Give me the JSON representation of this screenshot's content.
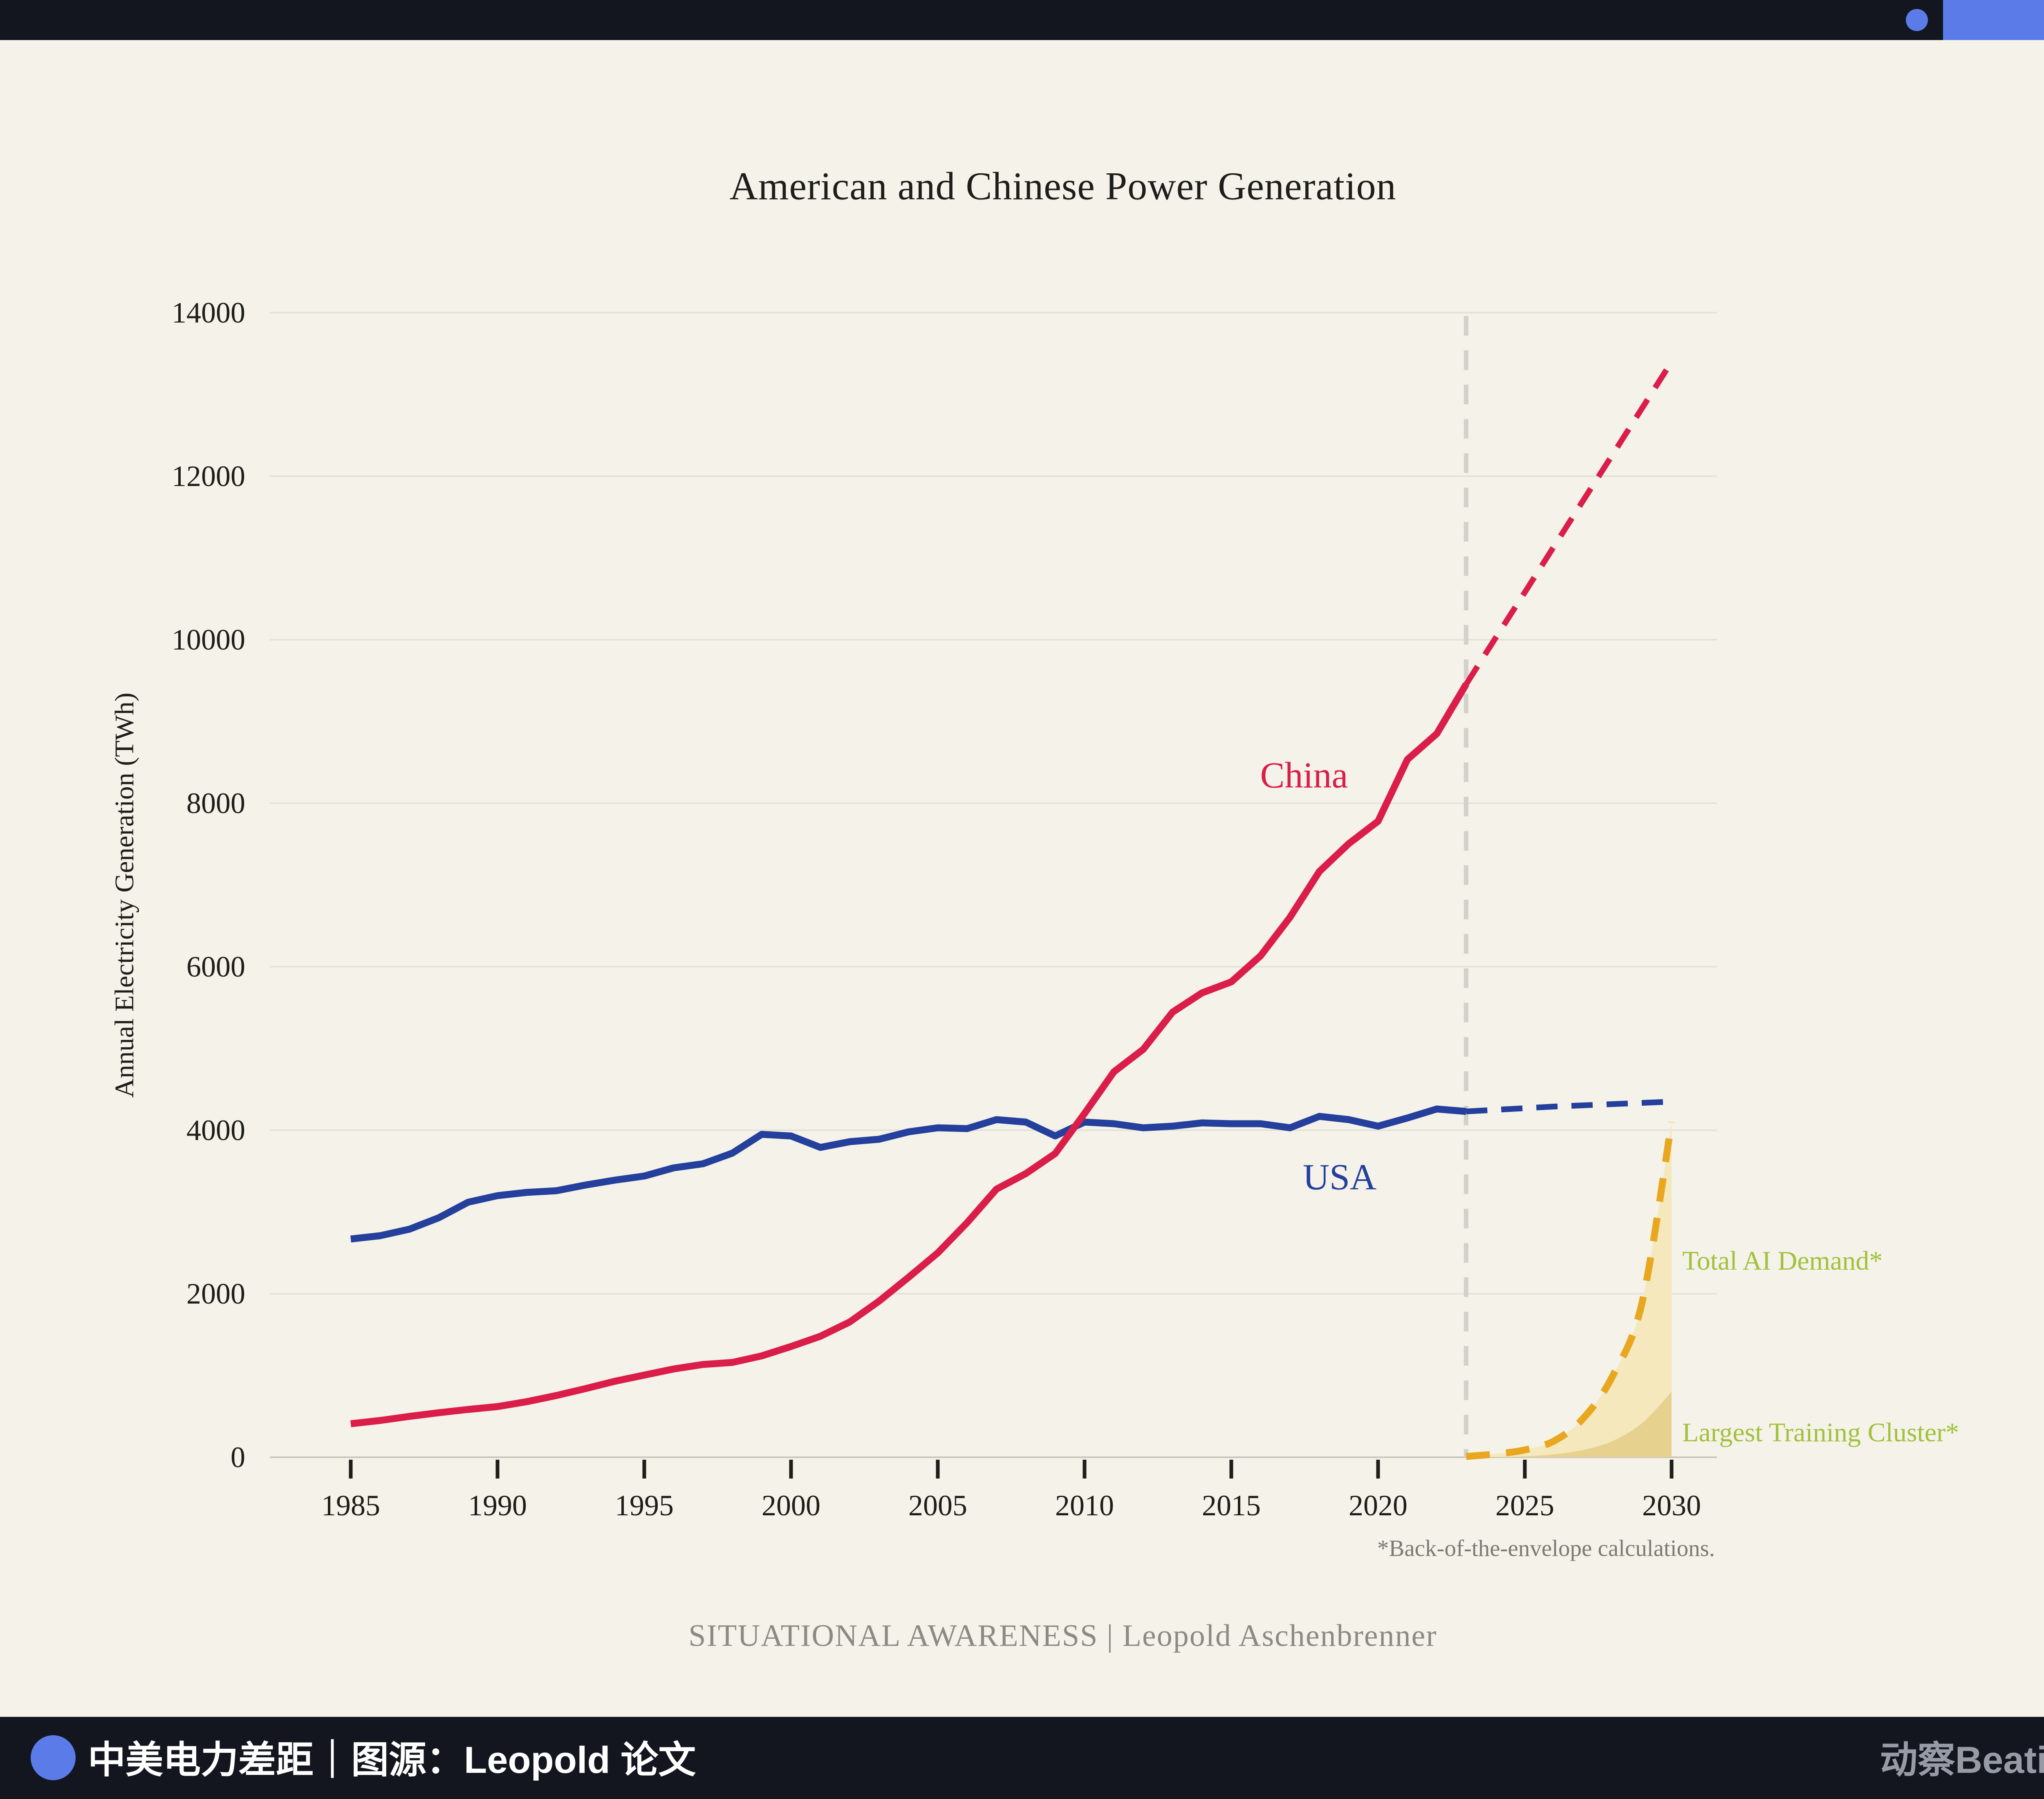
{
  "theme": {
    "background": "#f4f2e9",
    "bar": "#13161f",
    "accent_blue": "#5b7ce8",
    "usa_blue": "#24409c",
    "china_red": "#da1e49",
    "ai_gold": "#e9a71f",
    "ai_fill": "#f4e8bc",
    "cluster_fill": "#e6d18f",
    "annotation_green": "#a2c13c",
    "grid": "#e4e3da",
    "axis": "#c9c7bd",
    "divider": "#d3d2ca",
    "tick": "#1d1d1b",
    "caption_gray": "#8b8b85",
    "footnote_gray": "#7b7b76",
    "logo_gray": "#979ba6"
  },
  "chart_data": {
    "type": "line",
    "title": "American and Chinese Power Generation",
    "ylabel": "Annual Electricity Generation (TWh)",
    "ylim": [
      0,
      14000
    ],
    "yticks": [
      0,
      2000,
      4000,
      6000,
      8000,
      10000,
      12000,
      14000
    ],
    "xticks": [
      1985,
      1990,
      1995,
      2000,
      2005,
      2010,
      2015,
      2020,
      2025,
      2030
    ],
    "grid": true,
    "legend_position": "inline-labels",
    "projection_divider_year": 2023,
    "series": [
      {
        "name": "USA",
        "style": "solid",
        "color_key": "usa_blue",
        "x": [
          1985,
          1986,
          1987,
          1988,
          1989,
          1990,
          1991,
          1992,
          1993,
          1994,
          1995,
          1996,
          1997,
          1998,
          1999,
          2000,
          2001,
          2002,
          2003,
          2004,
          2005,
          2006,
          2007,
          2008,
          2009,
          2010,
          2011,
          2012,
          2013,
          2014,
          2015,
          2016,
          2017,
          2018,
          2019,
          2020,
          2021,
          2022,
          2023
        ],
        "values": [
          2670,
          2710,
          2790,
          2930,
          3120,
          3200,
          3240,
          3260,
          3330,
          3390,
          3440,
          3540,
          3590,
          3720,
          3950,
          3930,
          3790,
          3860,
          3890,
          3980,
          4030,
          4020,
          4130,
          4100,
          3930,
          4100,
          4080,
          4030,
          4050,
          4090,
          4080,
          4080,
          4030,
          4170,
          4130,
          4050,
          4150,
          4260,
          4230
        ]
      },
      {
        "name": "USA projection",
        "style": "dashed",
        "color_key": "usa_blue",
        "x": [
          2023,
          2024,
          2025,
          2026,
          2027,
          2028,
          2029,
          2030
        ],
        "values": [
          4230,
          4250,
          4270,
          4290,
          4305,
          4320,
          4335,
          4350
        ]
      },
      {
        "name": "China",
        "style": "solid",
        "color_key": "china_red",
        "x": [
          1985,
          1986,
          1987,
          1988,
          1989,
          1990,
          1991,
          1992,
          1993,
          1994,
          1995,
          1996,
          1997,
          1998,
          1999,
          2000,
          2001,
          2002,
          2003,
          2004,
          2005,
          2006,
          2007,
          2008,
          2009,
          2010,
          2011,
          2012,
          2013,
          2014,
          2015,
          2016,
          2017,
          2018,
          2019,
          2020,
          2021,
          2022,
          2023
        ],
        "values": [
          410,
          450,
          500,
          545,
          585,
          620,
          680,
          755,
          840,
          930,
          1005,
          1080,
          1135,
          1160,
          1240,
          1355,
          1480,
          1655,
          1910,
          2200,
          2500,
          2870,
          3280,
          3470,
          3715,
          4205,
          4715,
          4990,
          5445,
          5680,
          5815,
          6135,
          6605,
          7165,
          7505,
          7780,
          8535,
          8850,
          9455
        ]
      },
      {
        "name": "China projection",
        "style": "dashed",
        "color_key": "china_red",
        "x": [
          2023,
          2024,
          2025,
          2026,
          2027,
          2028,
          2029,
          2030
        ],
        "values": [
          9455,
          10020,
          10580,
          11145,
          11710,
          12270,
          12835,
          13400
        ]
      },
      {
        "name": "Total AI Demand*",
        "style": "dashed",
        "smooth": true,
        "color_key": "ai_gold",
        "fill_key": "ai_fill",
        "x": [
          2023,
          2024,
          2025,
          2026,
          2027,
          2028,
          2029,
          2030
        ],
        "values": [
          10,
          40,
          90,
          200,
          480,
          1000,
          1900,
          4100
        ]
      },
      {
        "name": "Largest Training Cluster*",
        "style": "none",
        "smooth": true,
        "fill_key": "cluster_fill",
        "x": [
          2023,
          2024,
          2025,
          2026,
          2027,
          2028,
          2029,
          2030
        ],
        "values": [
          0,
          4,
          12,
          35,
          90,
          200,
          420,
          800
        ]
      }
    ],
    "labels": {
      "china": "China",
      "usa": "USA",
      "ai": "Total AI Demand*",
      "cluster": "Largest Training Cluster*"
    },
    "footnote": "*Back-of-the-envelope calculations.",
    "caption": "SITUATIONAL AWARENESS | Leopold Aschenbrenner"
  },
  "footer": {
    "caption": "中美电力差距｜图源：Leopold 论文",
    "logo": "动察Beating"
  }
}
